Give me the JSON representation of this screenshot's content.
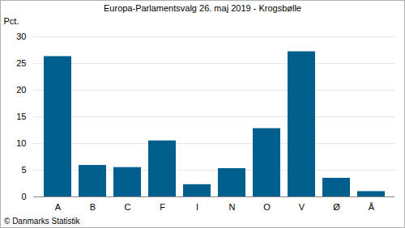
{
  "chart_data": {
    "type": "bar",
    "title": "Europa-Parlamentsvalg 26. maj 2019 - Krogsbølle",
    "y_label": "Pct.",
    "caption": "© Danmarks Statistik",
    "categories": [
      "A",
      "B",
      "C",
      "F",
      "I",
      "N",
      "O",
      "V",
      "Ø",
      "Å"
    ],
    "values": [
      26.3,
      5.9,
      5.5,
      10.5,
      2.3,
      5.3,
      12.8,
      27.2,
      3.5,
      1.0
    ],
    "color": "#005f8c",
    "ylim": [
      0,
      30
    ],
    "yticks": [
      0,
      5,
      10,
      15,
      20,
      25,
      30
    ],
    "grid": true
  }
}
